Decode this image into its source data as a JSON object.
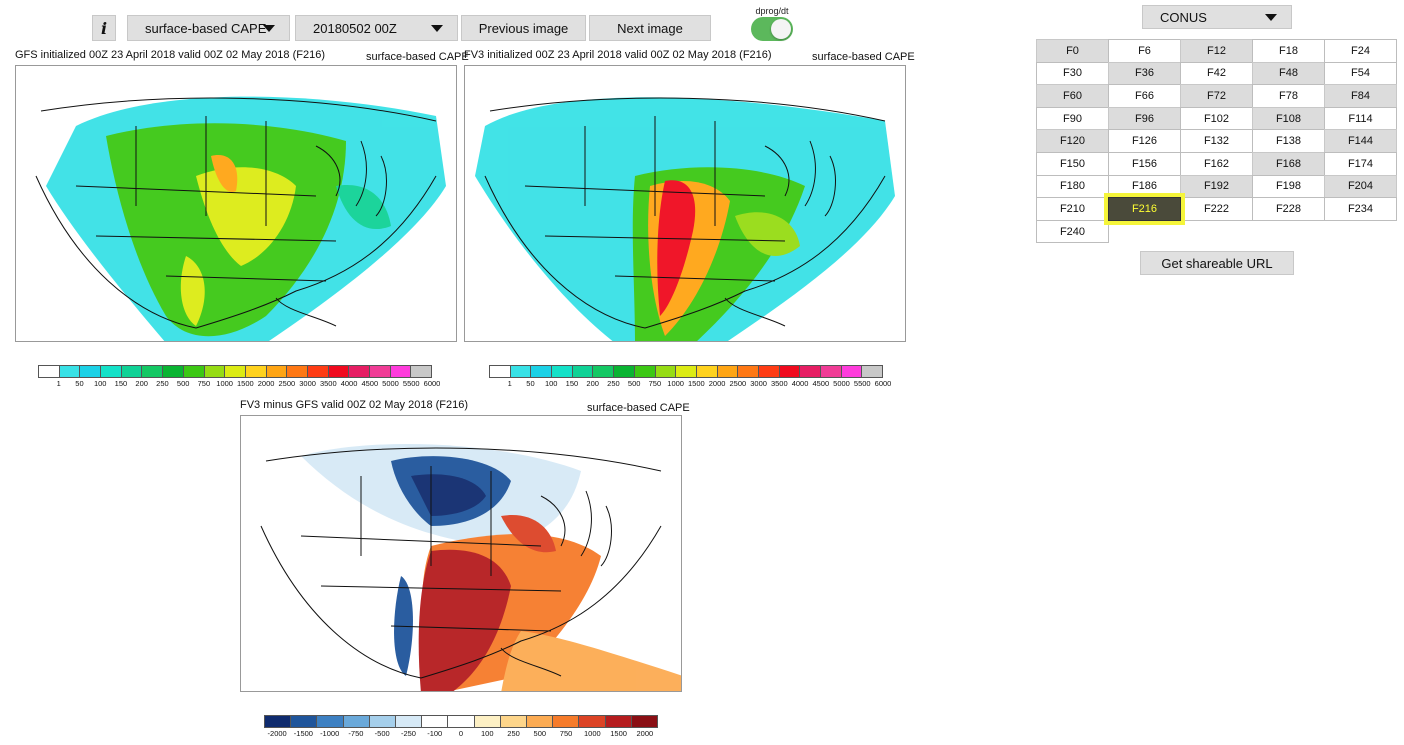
{
  "toolbar": {
    "info_label": "i",
    "field_dropdown": "surface-based CAPE",
    "date_dropdown": "20180502 00Z",
    "prev_label": "Previous image",
    "next_label": "Next image",
    "toggle_label": "dprog/dt",
    "toggle_on": true
  },
  "panels": {
    "gfs": {
      "caption": "GFS initialized 00Z 23 April 2018 valid 00Z 02 May 2018 (F216)",
      "field": "surface-based CAPE"
    },
    "fv3": {
      "caption": "FV3 initialized 00Z 23 April 2018 valid 00Z 02 May 2018 (F216)",
      "field": "surface-based CAPE"
    },
    "diff": {
      "caption": "FV3 minus GFS valid 00Z 02 May 2018 (F216)",
      "field": "surface-based CAPE"
    }
  },
  "colorbars": {
    "cape_colors": [
      "#ffffff",
      "#38e1e6",
      "#1cd1e6",
      "#14e1c8",
      "#10d296",
      "#14c864",
      "#0ab432",
      "#3cc814",
      "#96dc14",
      "#dceb14",
      "#ffd21e",
      "#ffa514",
      "#ff7814",
      "#ff3c14",
      "#f00a1e",
      "#e61e64",
      "#f03c96",
      "#ff3cdc",
      "#c8c8c8"
    ],
    "cape_ticks": [
      "1",
      "50",
      "100",
      "150",
      "200",
      "250",
      "500",
      "750",
      "1000",
      "1500",
      "2000",
      "2500",
      "3000",
      "3500",
      "4000",
      "4500",
      "5000",
      "5500",
      "6000"
    ],
    "diff_colors": [
      "#0f2b6e",
      "#1f559b",
      "#3d80c2",
      "#6aa9da",
      "#a5cfeb",
      "#d6e9f6",
      "#ffffff",
      "#ffffff",
      "#fdf0c4",
      "#fdd58a",
      "#fcab52",
      "#f67b2a",
      "#dc4325",
      "#b51c1e",
      "#8a0f14"
    ],
    "diff_ticks": [
      "-2000",
      "-1500",
      "-1000",
      "-750",
      "-500",
      "-250",
      "-100",
      "0",
      "100",
      "250",
      "500",
      "750",
      "1000",
      "1500",
      "2000"
    ]
  },
  "region": {
    "selected": "CONUS"
  },
  "forecast_hours": [
    "F0",
    "F6",
    "F12",
    "F18",
    "F24",
    "F30",
    "F36",
    "F42",
    "F48",
    "F54",
    "F60",
    "F66",
    "F72",
    "F78",
    "F84",
    "F90",
    "F96",
    "F102",
    "F108",
    "F114",
    "F120",
    "F126",
    "F132",
    "F138",
    "F144",
    "F150",
    "F156",
    "F162",
    "F168",
    "F174",
    "F180",
    "F186",
    "F192",
    "F198",
    "F204",
    "F210",
    "F216",
    "F222",
    "F228",
    "F234",
    "F240"
  ],
  "forecast_hours_available": [
    "F0",
    "F12",
    "F36",
    "F48",
    "F60",
    "F72",
    "F84",
    "F96",
    "F108",
    "F120",
    "F144",
    "F168",
    "F192",
    "F204",
    "F216"
  ],
  "forecast_hour_selected": "F216",
  "share_label": "Get shareable URL"
}
